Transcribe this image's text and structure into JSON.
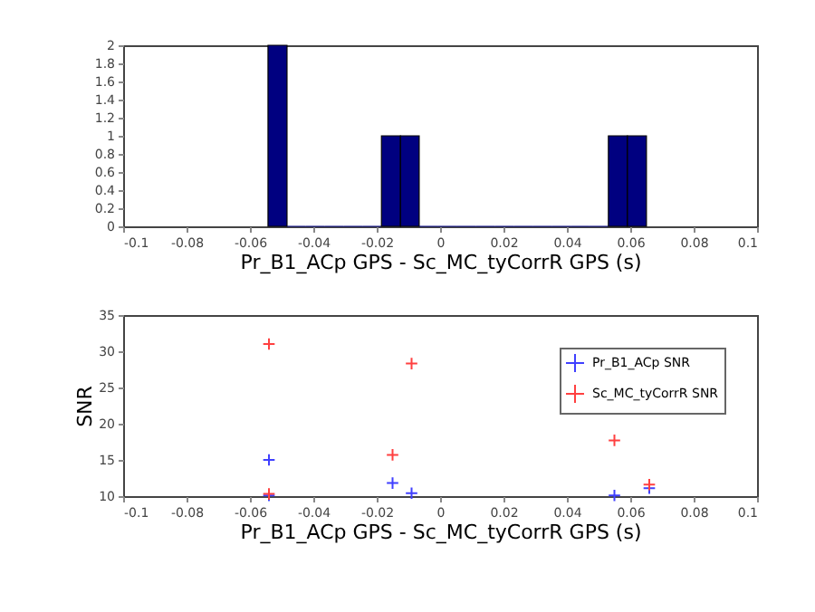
{
  "chart_data": [
    {
      "type": "histogram",
      "xlabel": "Pr_B1_ACp GPS - Sc_MC_tyCorrR GPS (s)",
      "color": "#000080",
      "bins": [
        -0.0543,
        -0.0483,
        -0.0424,
        -0.0364,
        -0.0304,
        -0.0245,
        -0.0185,
        -0.0125,
        -0.0066,
        -0.0006,
        0.0054,
        0.0113,
        0.0173,
        0.0233,
        0.0292,
        0.0352,
        0.0412,
        0.0471,
        0.0531,
        0.0591,
        0.0651
      ],
      "values": [
        2,
        0,
        0,
        0,
        0,
        0,
        1,
        1,
        0,
        0,
        0,
        0,
        0,
        0,
        0,
        0,
        0,
        0,
        1,
        1
      ],
      "xlim": [
        -0.1,
        0.1
      ],
      "xticks": [
        -0.1,
        -0.08,
        -0.06,
        -0.04,
        -0.02,
        0,
        0.02,
        0.04,
        0.06,
        0.08,
        0.1
      ],
      "ylim": [
        0,
        2
      ],
      "yticks": [
        0,
        0.2,
        0.4,
        0.6,
        0.8,
        1,
        1.2,
        1.4,
        1.6,
        1.8,
        2
      ],
      "grid": false
    },
    {
      "type": "scatter",
      "xlabel": "Pr_B1_ACp GPS - Sc_MC_tyCorrR GPS (s)",
      "ylabel": "SNR",
      "marker": "cross",
      "legend": "top right",
      "grid": false,
      "xlim": [
        -0.1,
        0.1
      ],
      "xticks": [
        -0.1,
        -0.08,
        -0.06,
        -0.04,
        -0.02,
        0,
        0.02,
        0.04,
        0.06,
        0.08,
        0.1
      ],
      "ylim": [
        10,
        35
      ],
      "yticks": [
        10,
        15,
        20,
        25,
        30,
        35
      ],
      "x": [
        -0.054,
        -0.054,
        -0.015,
        -0.009,
        0.055,
        0.066
      ],
      "series": [
        {
          "name": "Pr_B1_ACp SNR",
          "color": "#4040ff",
          "values": [
            15.0,
            10.1,
            11.8,
            10.4,
            10.1,
            11.1
          ]
        },
        {
          "name": "Sc_MC_tyCorrR SNR",
          "color": "#ff4040",
          "values": [
            31.0,
            10.3,
            15.7,
            28.3,
            17.7,
            11.6
          ]
        }
      ]
    }
  ]
}
